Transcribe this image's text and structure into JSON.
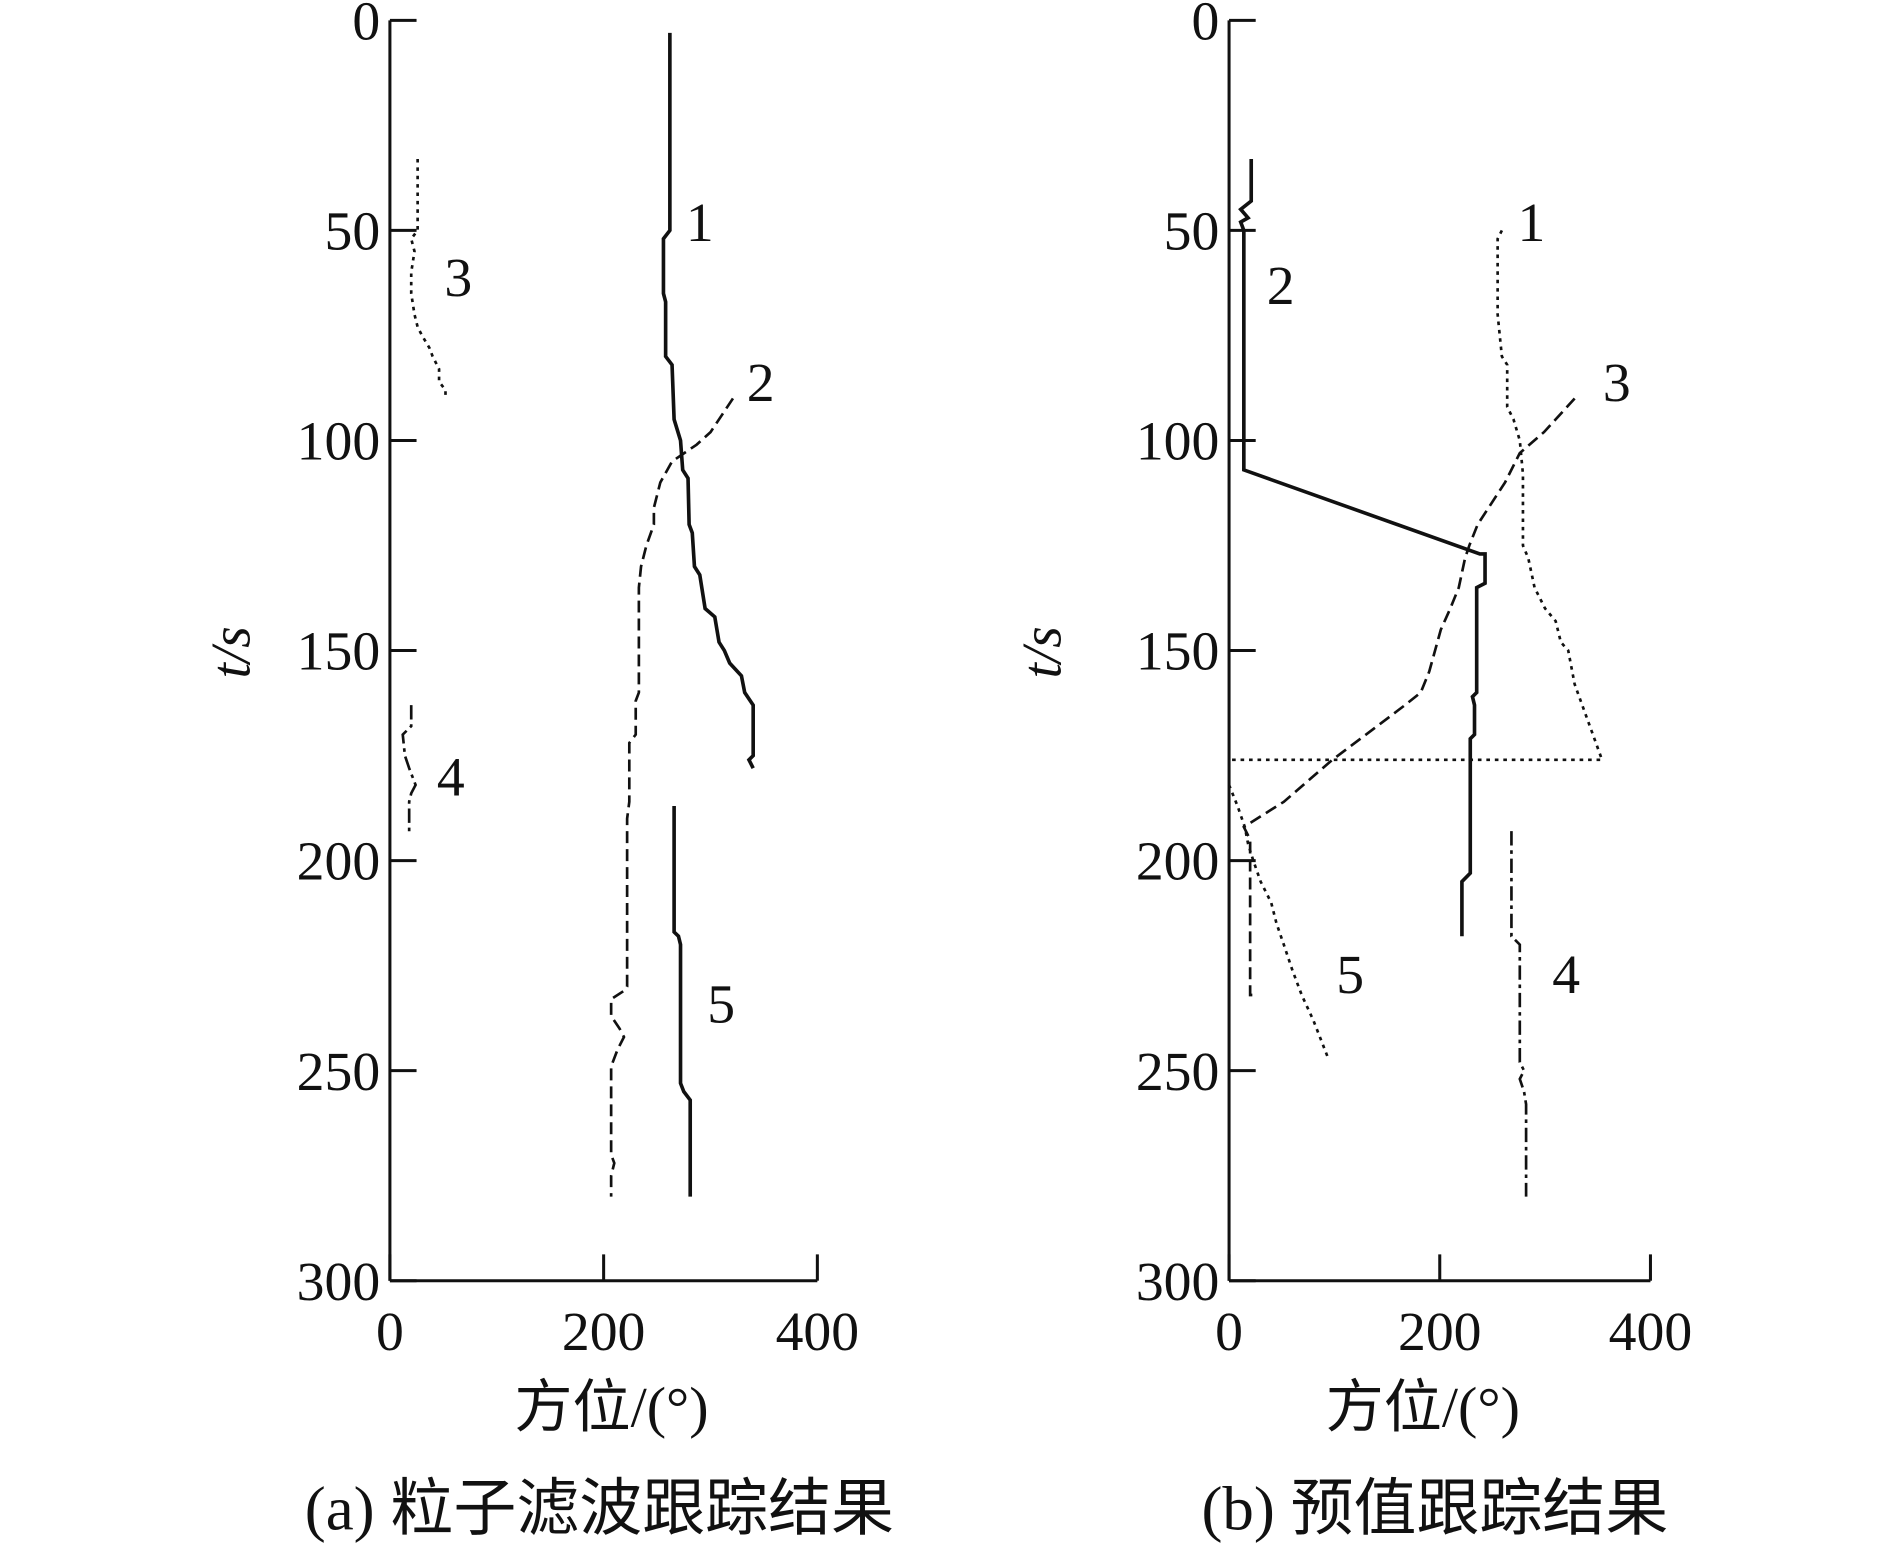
{
  "chart_data": [
    {
      "type": "line",
      "caption": "(a) 粒子滤波跟踪结果",
      "xlabel": "方位/(°)",
      "ylabel": "t/s",
      "xlim": [
        0,
        400
      ],
      "ylim": [
        300,
        0
      ],
      "xticks": [
        "0",
        "200",
        "400"
      ],
      "yticks": [
        "0",
        "50",
        "100",
        "150",
        "200",
        "250",
        "300"
      ],
      "grid": false,
      "series": [
        {
          "name": "1",
          "style": "solid",
          "label_at": [
            290,
            48
          ],
          "points": [
            [
              262,
              3
            ],
            [
              262,
              50
            ],
            [
              256,
              52
            ],
            [
              256,
              65
            ],
            [
              258,
              67
            ],
            [
              258,
              80
            ],
            [
              264,
              82
            ],
            [
              266,
              95
            ],
            [
              272,
              100
            ],
            [
              274,
              107
            ],
            [
              279,
              109
            ],
            [
              280,
              120
            ],
            [
              283,
              122
            ],
            [
              285,
              130
            ],
            [
              290,
              132
            ],
            [
              295,
              140
            ],
            [
              304,
              142
            ],
            [
              308,
              148
            ],
            [
              313,
              150
            ],
            [
              318,
              153
            ],
            [
              329,
              156
            ],
            [
              332,
              160
            ],
            [
              340,
              163
            ],
            [
              340,
              175
            ],
            [
              336,
              176
            ],
            [
              340,
              178
            ]
          ]
        },
        {
          "name": "2",
          "style": "dashed",
          "label_at": [
            347,
            86
          ],
          "points": [
            [
              321,
              90
            ],
            [
              300,
              98
            ],
            [
              287,
              101
            ],
            [
              264,
              105
            ],
            [
              253,
              110
            ],
            [
              247,
              116
            ],
            [
              247,
              120
            ],
            [
              240,
              125
            ],
            [
              235,
              130
            ],
            [
              233,
              135
            ],
            [
              233,
              160
            ],
            [
              230,
              162
            ],
            [
              230,
              170
            ],
            [
              224,
              172
            ],
            [
              224,
              186
            ],
            [
              222,
              190
            ],
            [
              222,
              230
            ],
            [
              219,
              231
            ],
            [
              207,
              233
            ],
            [
              207,
              237
            ],
            [
              215,
              240
            ],
            [
              219,
              242
            ],
            [
              213,
              245
            ],
            [
              207,
              249
            ],
            [
              207,
              270
            ],
            [
              210,
              272
            ],
            [
              207,
              275
            ],
            [
              207,
              280
            ]
          ]
        },
        {
          "name": "3",
          "style": "dotted",
          "label_at": [
            64,
            61
          ],
          "points": [
            [
              26,
              33
            ],
            [
              26,
              50
            ],
            [
              20,
              52
            ],
            [
              23,
              55
            ],
            [
              20,
              60
            ],
            [
              20,
              65
            ],
            [
              23,
              70
            ],
            [
              26,
              73
            ],
            [
              30,
              75
            ],
            [
              37,
              78
            ],
            [
              40,
              80
            ],
            [
              46,
              83
            ],
            [
              46,
              86
            ],
            [
              52,
              88
            ],
            [
              52,
              90
            ]
          ]
        },
        {
          "name": "4",
          "style": "dashdot",
          "label_at": [
            57,
            180
          ],
          "points": [
            [
              20,
              163
            ],
            [
              20,
              168
            ],
            [
              12,
              170
            ],
            [
              14,
              175
            ],
            [
              18,
              178
            ],
            [
              24,
              182
            ],
            [
              20,
              184
            ],
            [
              18,
              186
            ],
            [
              18,
              194
            ]
          ]
        },
        {
          "name": "5",
          "style": "solid",
          "label_at": [
            310,
            234
          ],
          "points": [
            [
              266,
              187
            ],
            [
              266,
              217
            ],
            [
              270,
              218
            ],
            [
              272,
              220
            ],
            [
              272,
              253
            ],
            [
              275,
              255
            ],
            [
              281,
              257
            ],
            [
              281,
              280
            ]
          ]
        }
      ]
    },
    {
      "type": "line",
      "caption": "(b) 预值跟踪结果",
      "xlabel": "方位/(°)",
      "ylabel": "t/s",
      "xlim": [
        0,
        400
      ],
      "ylim": [
        300,
        0
      ],
      "xticks": [
        "0",
        "200",
        "400"
      ],
      "yticks": [
        "0",
        "50",
        "100",
        "150",
        "200",
        "250",
        "300"
      ],
      "grid": false,
      "series": [
        {
          "name": "1",
          "style": "dotted",
          "label_at": [
            287,
            48
          ],
          "points": [
            [
              259,
              50
            ],
            [
              255,
              52
            ],
            [
              255,
              70
            ],
            [
              259,
              80
            ],
            [
              264,
              82
            ],
            [
              264,
              92
            ],
            [
              270,
              95
            ],
            [
              276,
              100
            ],
            [
              279,
              108
            ],
            [
              279,
              125
            ],
            [
              284,
              128
            ],
            [
              290,
              135
            ],
            [
              300,
              140
            ],
            [
              310,
              143
            ],
            [
              315,
              148
            ],
            [
              322,
              150
            ],
            [
              328,
              158
            ],
            [
              354,
              176
            ],
            [
              0,
              176
            ]
          ]
        },
        {
          "name": "2",
          "style": "solid",
          "label_at": [
            49,
            63
          ],
          "points": [
            [
              21,
              33
            ],
            [
              21,
              43
            ],
            [
              11,
              45
            ],
            [
              18,
              47
            ],
            [
              11,
              48
            ],
            [
              14,
              50
            ],
            [
              14,
              107
            ],
            [
              238,
              127
            ],
            [
              243,
              127
            ],
            [
              243,
              134
            ],
            [
              235,
              135
            ],
            [
              235,
              160
            ],
            [
              231,
              161
            ],
            [
              233,
              163
            ],
            [
              233,
              170
            ],
            [
              229,
              171
            ],
            [
              229,
              203
            ],
            [
              221,
              205
            ],
            [
              221,
              218
            ]
          ]
        },
        {
          "name": "3",
          "style": "dashed",
          "label_at": [
            368,
            86
          ],
          "points": [
            [
              328,
              90
            ],
            [
              310,
              95
            ],
            [
              299,
              98
            ],
            [
              276,
              103
            ],
            [
              262,
              110
            ],
            [
              236,
              120
            ],
            [
              228,
              125
            ],
            [
              224,
              128
            ],
            [
              218,
              135
            ],
            [
              210,
              140
            ],
            [
              201,
              145
            ],
            [
              190,
              155
            ],
            [
              182,
              160
            ],
            [
              167,
              163
            ],
            [
              130,
              170
            ],
            [
              98,
              176
            ],
            [
              52,
              186
            ],
            [
              14,
              192
            ],
            [
              20,
              195
            ],
            [
              20,
              232
            ],
            [
              26,
              232
            ]
          ]
        },
        {
          "name": "4",
          "style": "dashdot",
          "label_at": [
            320,
            227
          ],
          "points": [
            [
              268,
              193
            ],
            [
              268,
              218
            ],
            [
              276,
              220
            ],
            [
              276,
              248
            ],
            [
              280,
              250
            ],
            [
              276,
              252
            ],
            [
              280,
              255
            ],
            [
              282,
              258
            ],
            [
              282,
              280
            ]
          ]
        },
        {
          "name": "5",
          "style": "dotted",
          "label_at": [
            115,
            227
          ],
          "points": [
            [
              0,
              182
            ],
            [
              8,
              187
            ],
            [
              15,
              192
            ],
            [
              18,
              196
            ],
            [
              23,
              200
            ],
            [
              30,
              205
            ],
            [
              40,
              210
            ],
            [
              45,
              215
            ],
            [
              52,
              220
            ],
            [
              60,
              226
            ],
            [
              69,
              232
            ],
            [
              80,
              238
            ],
            [
              94,
              247
            ]
          ]
        }
      ]
    }
  ]
}
